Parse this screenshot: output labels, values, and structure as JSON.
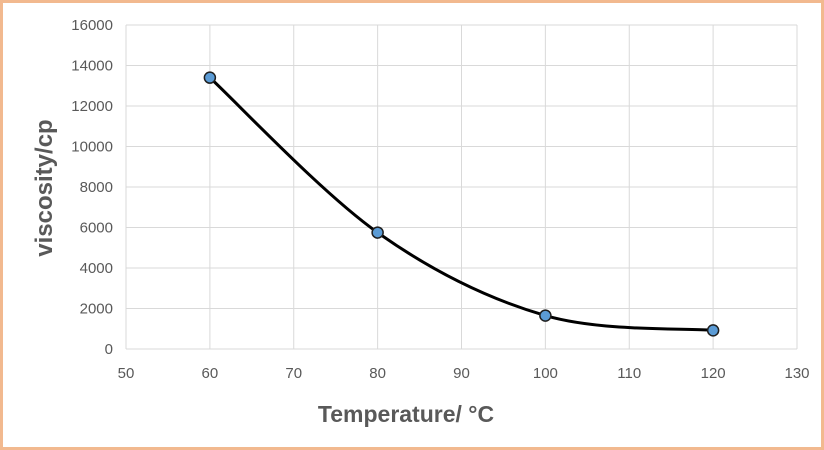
{
  "chart_data": {
    "type": "scatter",
    "xlabel": "Temperature/ °C",
    "ylabel": "viscosity/cp",
    "xlim": [
      50,
      130
    ],
    "ylim": [
      0,
      16000
    ],
    "xticks": [
      50,
      60,
      70,
      80,
      90,
      100,
      110,
      120,
      130
    ],
    "yticks": [
      0,
      2000,
      4000,
      6000,
      8000,
      10000,
      12000,
      14000,
      16000
    ],
    "grid": true,
    "smoothed_line": true,
    "colors": {
      "line": "#000000",
      "marker_fill": "#5b9bd5",
      "marker_edge": "#1f1f1f",
      "grid": "#d9d9d9",
      "border": "#f2b98f"
    },
    "series": [
      {
        "x": [
          60,
          80,
          100,
          120
        ],
        "y": [
          13400,
          5750,
          1650,
          920
        ]
      }
    ]
  }
}
